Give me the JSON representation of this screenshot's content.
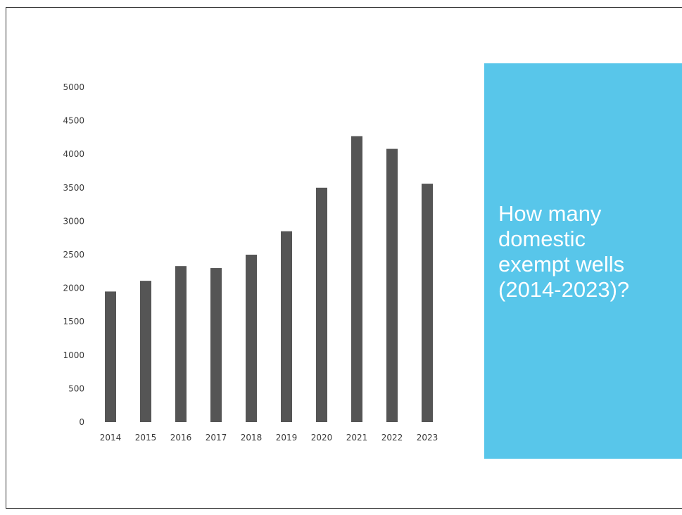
{
  "chart_data": {
    "type": "bar",
    "categories": [
      "2014",
      "2015",
      "2016",
      "2017",
      "2018",
      "2019",
      "2020",
      "2021",
      "2022",
      "2023"
    ],
    "values": [
      1950,
      2110,
      2330,
      2300,
      2500,
      2850,
      3500,
      4270,
      4080,
      3560
    ],
    "yticks": [
      "0",
      "500",
      "1000",
      "1500",
      "2000",
      "2500",
      "3000",
      "3500",
      "4000",
      "4500",
      "5000"
    ],
    "ylim": [
      0,
      5000
    ],
    "grid": false,
    "legend": "none",
    "bar_color": "#555555"
  },
  "title_panel": {
    "text": "How many\ndomestic\nexempt wells\n(2014-2023)?",
    "background": "#58c6ea",
    "text_color": "#ffffff"
  }
}
